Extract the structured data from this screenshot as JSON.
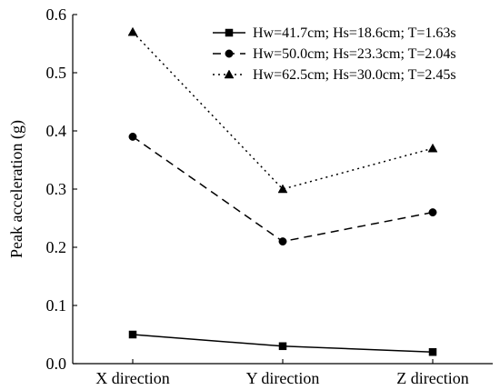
{
  "chart_data": {
    "type": "line",
    "categories": [
      "X direction",
      "Y direction",
      "Z direction"
    ],
    "ylabel": "Peak acceleration (g)",
    "xlabel": "",
    "ylim": [
      0,
      0.6
    ],
    "yticks": [
      0.0,
      0.1,
      0.2,
      0.3,
      0.4,
      0.5,
      0.6
    ],
    "ytick_labels": [
      "0.0",
      "0.1",
      "0.2",
      "0.3",
      "0.4",
      "0.5",
      "0.6"
    ],
    "grid": false,
    "legend_position": "top-right",
    "series": [
      {
        "name": "Hw=41.7cm; Hs=18.6cm; T=1.63s",
        "values": [
          0.05,
          0.03,
          0.02
        ],
        "line_style": "solid",
        "marker": "square",
        "color": "#000000"
      },
      {
        "name": "Hw=50.0cm; Hs=23.3cm; T=2.04s",
        "values": [
          0.39,
          0.21,
          0.26
        ],
        "line_style": "dashed",
        "marker": "circle",
        "color": "#000000"
      },
      {
        "name": "Hw=62.5cm; Hs=30.0cm; T=2.45s",
        "values": [
          0.57,
          0.3,
          0.37
        ],
        "line_style": "dotted",
        "marker": "triangle",
        "color": "#000000"
      }
    ]
  }
}
